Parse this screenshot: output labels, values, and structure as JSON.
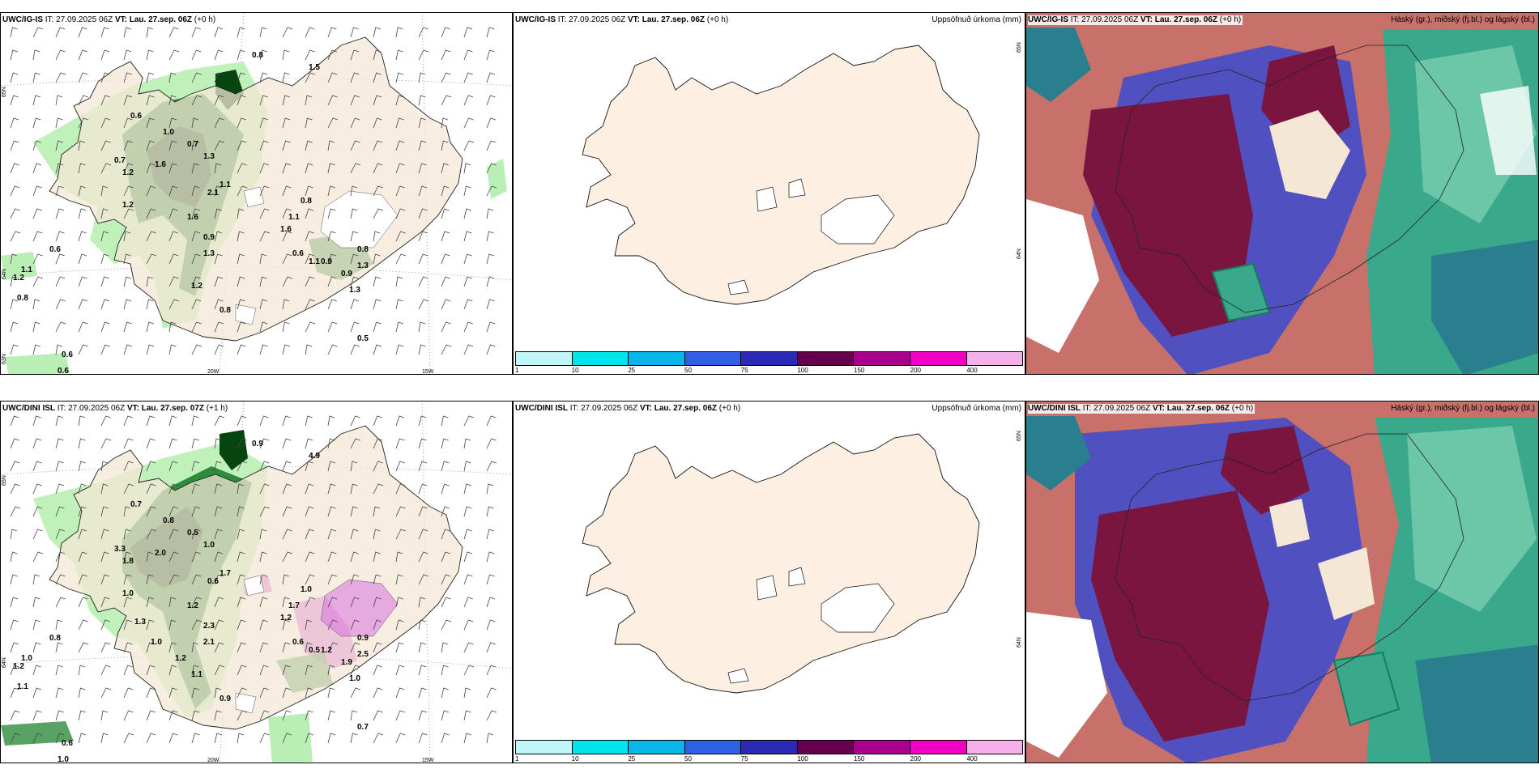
{
  "rows": [
    {
      "wind_panel": {
        "model": "UWC/IG-IS",
        "it": "IT: 27.09.2025 06Z",
        "vt_label": "VT:",
        "vt": "Lau. 27.sep. 06Z",
        "lead": "(+0 h)",
        "lat_labels": [
          "65N",
          "64N",
          "63N"
        ],
        "lon_labels": [
          "20W",
          "15W"
        ],
        "precip_labels": [
          "0.8",
          "1.5",
          "1.0",
          "0.6",
          "0.7",
          "1.2",
          "0.7",
          "1.6",
          "1.3",
          "1.2",
          "2.1",
          "1.1",
          "1.6",
          "0.9",
          "1.3",
          "0.8",
          "1.1",
          "1.6",
          "0.6",
          "1.1",
          "0.9",
          "0.8",
          "1.3",
          "0.9",
          "1.3",
          "0.6",
          "1.1",
          "1.2",
          "0.8",
          "0.6",
          "0.6",
          "0.5",
          "0.8",
          "1.2"
        ]
      },
      "precip_panel": {
        "model": "UWC/IG-IS",
        "it": "IT: 27.09.2025 06Z",
        "vt_label": "VT:",
        "vt": "Lau. 27.sep. 06Z",
        "lead": "(+0 h)",
        "right_title": "Uppsöfnuð úrkoma (mm)",
        "lat_labels": [
          "65N",
          "64N"
        ]
      },
      "cloud_panel": {
        "model": "UWC/IG-IS",
        "it": "IT: 27.09.2025 06Z",
        "vt_label": "VT:",
        "vt": "Lau. 27.sep. 06Z",
        "lead": "(+0 h)",
        "right_title": "Háský (gr.), miðský (fj.bl.) og lágský (bl.)"
      }
    },
    {
      "wind_panel": {
        "model": "UWC/DINI ISL",
        "it": "IT: 27.09.2025 06Z",
        "vt_label": "VT:",
        "vt": "Lau. 27.sep. 07Z",
        "lead": "(+1 h)",
        "lat_labels": [
          "65N",
          "64N"
        ],
        "lon_labels": [
          "20W",
          "15W"
        ],
        "precip_labels": [
          "0.9",
          "4.9",
          "0.8",
          "0.7",
          "3.3",
          "1.8",
          "0.5",
          "2.0",
          "1.0",
          "1.0",
          "0.6",
          "1.7",
          "1.2",
          "2.3",
          "2.1",
          "1.0",
          "1.7",
          "1.2",
          "0.6",
          "0.5",
          "1.2",
          "0.9",
          "2.5",
          "1.9",
          "1.0",
          "0.8",
          "1.0",
          "1.2",
          "1.1",
          "0.6",
          "1.0",
          "0.7",
          "0.9",
          "1.1",
          "1.2",
          "1.0",
          "1.3"
        ]
      },
      "precip_panel": {
        "model": "UWC/DINI ISL",
        "it": "IT: 27.09.2025 06Z",
        "vt_label": "VT:",
        "vt": "Lau. 27.sep. 06Z",
        "lead": "(+0 h)",
        "right_title": "Uppsöfnuð úrkoma (mm)",
        "lat_labels": [
          "65N",
          "64N"
        ]
      },
      "cloud_panel": {
        "model": "UWC/DINI ISL",
        "it": "IT: 27.09.2025 06Z",
        "vt_label": "VT:",
        "vt": "Lau. 27.sep. 06Z",
        "lead": "(+0 h)",
        "right_title": "Háský (gr.), miðský (fj.bl.) og lágský (bl.)"
      }
    }
  ],
  "precip_legend": {
    "ticks": [
      "1",
      "10",
      "25",
      "50",
      "75",
      "100",
      "150",
      "200",
      "400"
    ],
    "colors": [
      "#bff6f8",
      "#00e5ec",
      "#08b6ea",
      "#2f5fe5",
      "#2a2ab4",
      "#65004f",
      "#a8008c",
      "#f000c4",
      "#f5b0ec"
    ]
  },
  "colors": {
    "land": "#f4e7d6",
    "land_alt": "#fdf0e2",
    "ice": "#ffffff",
    "precip_light": "#b9efb4",
    "precip_mid": "#2e8b3c",
    "precip_heavy": "#06450f",
    "precip_magenta": "#d868e0",
    "cloud_high": "#3aa88a",
    "cloud_mid": "#5050c0",
    "cloud_low": "#7a1540",
    "cloud_mix": "#c8706a"
  }
}
